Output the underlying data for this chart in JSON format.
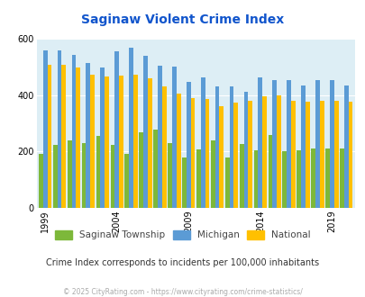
{
  "title": "Saginaw Violent Crime Index",
  "title_color": "#1155cc",
  "subtitle": "Crime Index corresponds to incidents per 100,000 inhabitants",
  "footer": "© 2025 CityRating.com - https://www.cityrating.com/crime-statistics/",
  "years": [
    1999,
    2000,
    2001,
    2002,
    2003,
    2004,
    2005,
    2006,
    2007,
    2008,
    2009,
    2010,
    2011,
    2012,
    2013,
    2014,
    2015,
    2016,
    2017,
    2018,
    2019,
    2020
  ],
  "saginaw_township": [
    190,
    222,
    238,
    230,
    255,
    222,
    192,
    268,
    278,
    230,
    178,
    208,
    238,
    178,
    228,
    203,
    258,
    200,
    203,
    210,
    210,
    212
  ],
  "michigan": [
    558,
    558,
    542,
    512,
    498,
    555,
    568,
    538,
    505,
    500,
    448,
    462,
    430,
    430,
    412,
    462,
    453,
    452,
    435,
    452,
    452,
    435
  ],
  "national": [
    508,
    508,
    498,
    472,
    465,
    470,
    472,
    460,
    432,
    404,
    390,
    385,
    362,
    373,
    380,
    395,
    398,
    380,
    375,
    380,
    378,
    375
  ],
  "bar_colors": [
    "#7db83a",
    "#5b9bd5",
    "#ffc000"
  ],
  "bg_color": "#ddeef5",
  "ylim": [
    0,
    600
  ],
  "yticks": [
    0,
    200,
    400,
    600
  ],
  "xlabel_years": [
    1999,
    2004,
    2009,
    2014,
    2019
  ],
  "legend_labels": [
    "Saginaw Township",
    "Michigan",
    "National"
  ],
  "subtitle_color": "#333333",
  "footer_color": "#aaaaaa"
}
